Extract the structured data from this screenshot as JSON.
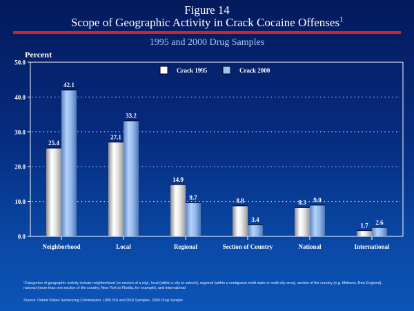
{
  "figure": {
    "number": "Figure 14",
    "title": "Scope of Geographic Activity in Crack Cocaine Offenses",
    "title_footnote_marker": "1",
    "subtitle": "1995 and 2000 Drug Samples",
    "footnote": "¹Categories of geographic activity include neighborhood (or section of a city), local (within a city or suburb), regional (within a contiguous multi-state or multi-city area), section of the country (e.g. Midwest, New England), national (more than one section of the country, New York to Florida, for example), and international",
    "source": "Source: United States Sentencing Commission, 1995 ISS and DSS Samples, 2000 Drug Sample"
  },
  "colors": {
    "accent_rule": "#d6202a",
    "series_1995": "#ffffff",
    "series_2000": "#9cc3f5"
  },
  "chart_data": {
    "type": "bar",
    "title": "Scope of Geographic Activity in Crack Cocaine Offenses",
    "subtitle": "1995 and 2000 Drug Samples",
    "xlabel": "",
    "ylabel": "Percent",
    "ylim": [
      0,
      50
    ],
    "yticks": [
      "0.0",
      "10.0",
      "20.0",
      "30.0",
      "40.0",
      "50.0"
    ],
    "grid": true,
    "legend_position": "top-center",
    "categories": [
      "Neighborhood",
      "Local",
      "Regional",
      "Section of Country",
      "National",
      "International"
    ],
    "series": [
      {
        "name": "Crack 1995",
        "values": [
          25.4,
          27.1,
          14.9,
          8.8,
          8.3,
          1.7
        ],
        "labels": [
          "25.4",
          "27.1",
          "14.9",
          "8.8",
          "8.3",
          "1.7"
        ]
      },
      {
        "name": "Crack 2000",
        "values": [
          42.1,
          33.2,
          9.7,
          3.4,
          9.0,
          2.6
        ],
        "labels": [
          "42.1",
          "33.2",
          "9.7",
          "3.4",
          "9.0",
          "2.6"
        ]
      }
    ]
  }
}
